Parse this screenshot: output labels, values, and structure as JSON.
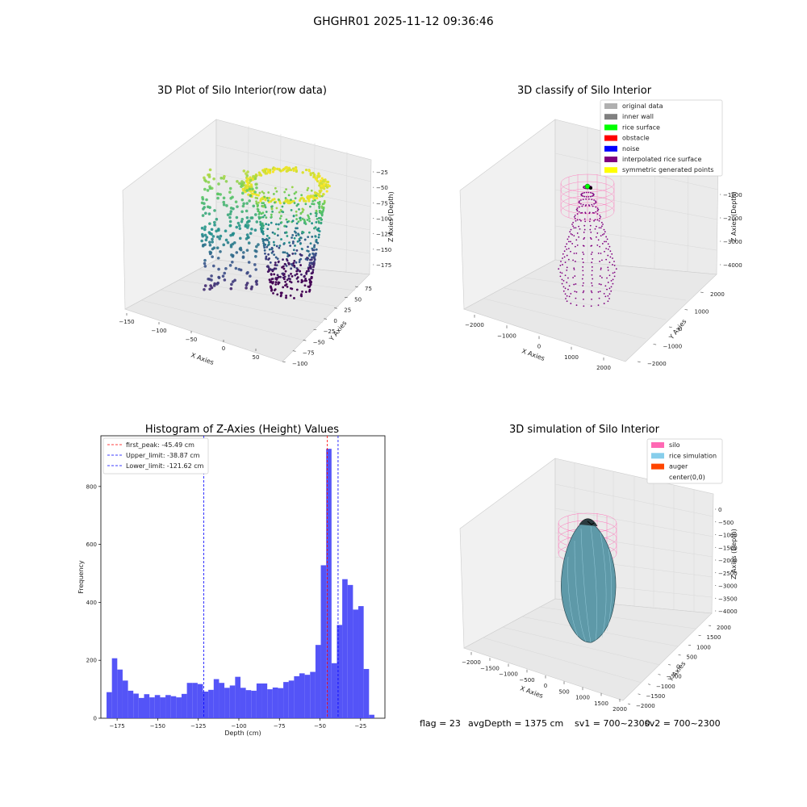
{
  "suptitle": "GHGHR01 2025-11-12 09:36:46",
  "panels": {
    "raw": {
      "title": "3D Plot of Silo Interior(row data)",
      "xlabel": "X Axies",
      "ylabel": "Y Axies",
      "zlabel": "Z Axies (Depth)",
      "xticks": [
        "−150",
        "−100",
        "−50",
        "0",
        "50"
      ],
      "yticks": [
        "−100",
        "−75",
        "−50",
        "−25",
        "0",
        "25",
        "50",
        "75"
      ],
      "zticks": [
        "−25",
        "−50",
        "−75",
        "−100",
        "−125",
        "−150",
        "−175"
      ]
    },
    "classify": {
      "title": "3D classify of Silo Interior",
      "xlabel": "X Axies",
      "ylabel": "Y Axies",
      "zlabel": "Z Axies (Depth)",
      "xticks": [
        "−2000",
        "−1000",
        "0",
        "1000",
        "2000"
      ],
      "yticks": [
        "−2000",
        "−1000",
        "0",
        "1000",
        "2000"
      ],
      "zticks": [
        "−1000",
        "−2000",
        "−3000",
        "−4000"
      ],
      "legend": [
        {
          "label": "original data",
          "color": "#b0b0b0"
        },
        {
          "label": "inner wall",
          "color": "#808080"
        },
        {
          "label": "rice surface",
          "color": "#00ff00"
        },
        {
          "label": "obstacle",
          "color": "#ff0000"
        },
        {
          "label": "noise",
          "color": "#0000ff"
        },
        {
          "label": "interpolated rice surface",
          "color": "#800080"
        },
        {
          "label": "symmetric generated points",
          "color": "#ffff00"
        }
      ]
    },
    "simulation": {
      "title": "3D simulation of Silo Interior",
      "xlabel": "X Axies",
      "ylabel": "Y Axies",
      "zlabel": "Z Axies (Depth)",
      "xticks": [
        "−2000",
        "−1500",
        "−1000",
        "−500",
        "0",
        "500",
        "1000",
        "1500",
        "2000"
      ],
      "yticks": [
        "−2000",
        "−1500",
        "−1000",
        "−500",
        "0",
        "500",
        "1000",
        "1500",
        "2000"
      ],
      "zticks": [
        "0",
        "−500",
        "−1000",
        "−1500",
        "−2000",
        "−2500",
        "−3000",
        "−3500",
        "−4000"
      ],
      "legend": [
        {
          "label": "silo",
          "color": "#ff69b4"
        },
        {
          "label": "rice simulation",
          "color": "#87ceeb"
        },
        {
          "label": "auger",
          "color": "#ff4500"
        },
        {
          "label": "center(0,0)",
          "color": ""
        }
      ]
    }
  },
  "footer": {
    "flag": "flag = 23",
    "avg": "avgDepth = 1375 cm",
    "sv1": "sv1 = 700~2300",
    "sv2": "sv2 = 700~2300"
  },
  "colors": {
    "bars": "#4b4bf7",
    "first_peak": "#ff0000",
    "limits": "#0000ff",
    "silo": "#ff69b4",
    "rice": "#87ceeb"
  },
  "chart_data": {
    "type": "bar",
    "title": "Histogram of Z-Axies (Height) Values",
    "xlabel": "Depth (cm)",
    "ylabel": "Frequency",
    "xlim": [
      -185,
      -10
    ],
    "ylim": [
      0,
      975
    ],
    "xticks": [
      -175,
      -150,
      -125,
      -100,
      -75,
      -50,
      -25
    ],
    "yticks": [
      0,
      200,
      400,
      600,
      800
    ],
    "bin_start": -181.5,
    "bin_width": 3.3,
    "values": [
      90,
      207,
      168,
      130,
      95,
      85,
      70,
      83,
      72,
      80,
      72,
      80,
      76,
      72,
      84,
      122,
      122,
      118,
      92,
      98,
      135,
      122,
      105,
      113,
      143,
      105,
      97,
      95,
      120,
      120,
      100,
      106,
      104,
      125,
      130,
      145,
      155,
      150,
      160,
      253,
      528,
      930,
      190,
      322,
      480,
      460,
      375,
      387,
      170,
      12
    ],
    "lines": [
      {
        "label": "first_peak: -45.49 cm",
        "x": -45.49,
        "color": "#ff0000"
      },
      {
        "label": "Upper_limit: -38.87 cm",
        "x": -38.87,
        "color": "#0000ff"
      },
      {
        "label": "Lower_limit: -121.62 cm",
        "x": -121.62,
        "color": "#0000ff"
      }
    ]
  }
}
